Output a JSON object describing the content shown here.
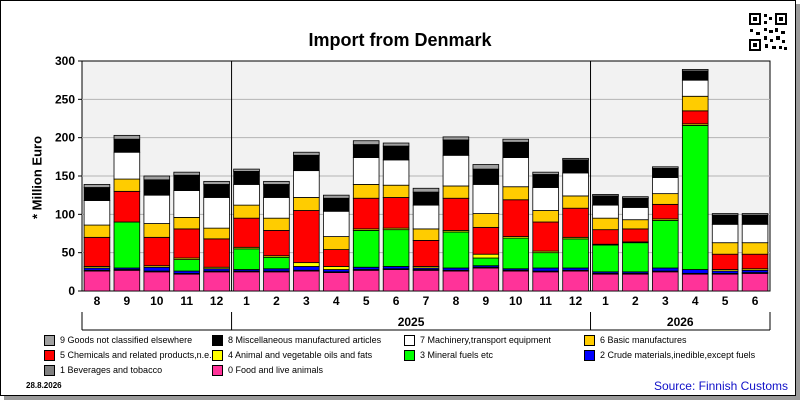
{
  "chart_data": {
    "type": "bar",
    "stacked": true,
    "title": "Import from Denmark",
    "ylabel": "* Million Euro",
    "ylim": [
      0,
      300
    ],
    "yticks": [
      0,
      50,
      100,
      150,
      200,
      250,
      300
    ],
    "categories": [
      "8",
      "9",
      "10",
      "11",
      "12",
      "1",
      "2",
      "3",
      "4",
      "5",
      "6",
      "7",
      "8",
      "9",
      "10",
      "11",
      "12",
      "1",
      "2",
      "3",
      "4",
      "5",
      "6"
    ],
    "year_labels": [
      {
        "label": "2025",
        "start": 5,
        "end": 16
      },
      {
        "label": "2026",
        "start": 17,
        "end": 22
      }
    ],
    "series": [
      {
        "name": "0 Food and live animals",
        "color": "#ff3399",
        "values": [
          26,
          27,
          25,
          22,
          25,
          25,
          25,
          26,
          24,
          27,
          28,
          27,
          26,
          30,
          26,
          25,
          26,
          22,
          22,
          25,
          22,
          22,
          23
        ]
      },
      {
        "name": "1 Beverages and tobacco",
        "color": "#808080",
        "values": [
          1,
          1,
          1,
          1,
          1,
          1,
          1,
          1,
          1,
          1,
          1,
          1,
          1,
          1,
          1,
          1,
          1,
          1,
          1,
          1,
          1,
          1,
          1
        ]
      },
      {
        "name": "2 Crude materials,inedible,except fuels",
        "color": "#0000ff",
        "values": [
          3,
          2,
          5,
          3,
          3,
          2,
          3,
          5,
          3,
          3,
          3,
          2,
          3,
          2,
          2,
          4,
          3,
          2,
          2,
          4,
          5,
          3,
          3
        ]
      },
      {
        "name": "3 Mineral fuels etc",
        "color": "#00ff00",
        "values": [
          0,
          60,
          0,
          15,
          0,
          27,
          15,
          0,
          0,
          48,
          48,
          0,
          47,
          10,
          40,
          20,
          38,
          35,
          38,
          62,
          188,
          0,
          0
        ]
      },
      {
        "name": "4 Animal and vegetable oils and fats",
        "color": "#ffff00",
        "values": [
          2,
          0,
          2,
          2,
          2,
          2,
          2,
          5,
          4,
          2,
          2,
          2,
          2,
          5,
          2,
          2,
          2,
          1,
          1,
          2,
          2,
          2,
          2
        ]
      },
      {
        "name": "5 Chemicals and related products,n.e.s.",
        "color": "#ff0000",
        "values": [
          38,
          40,
          37,
          38,
          37,
          38,
          33,
          68,
          22,
          40,
          40,
          34,
          42,
          35,
          48,
          38,
          38,
          19,
          17,
          19,
          17,
          20,
          19
        ]
      },
      {
        "name": "6 Basic manufactures",
        "color": "#ffcc00",
        "values": [
          16,
          16,
          18,
          15,
          14,
          17,
          16,
          17,
          17,
          18,
          16,
          15,
          16,
          18,
          17,
          15,
          16,
          15,
          12,
          14,
          19,
          15,
          15
        ]
      },
      {
        "name": "7 Machinery,transport equipment",
        "color": "#ffffff",
        "values": [
          32,
          35,
          37,
          35,
          40,
          27,
          27,
          35,
          33,
          35,
          33,
          31,
          40,
          38,
          38,
          30,
          30,
          17,
          16,
          21,
          21,
          24,
          24
        ]
      },
      {
        "name": "8 Miscellaneous manufactured articles",
        "color": "#000000",
        "values": [
          17,
          17,
          20,
          20,
          17,
          17,
          17,
          20,
          17,
          17,
          18,
          17,
          20,
          20,
          20,
          17,
          17,
          12,
          12,
          12,
          12,
          12,
          12
        ]
      },
      {
        "name": "9 Goods not classified elsewhere",
        "color": "#a0a0a0",
        "values": [
          4,
          5,
          5,
          4,
          4,
          3,
          4,
          4,
          4,
          5,
          4,
          5,
          4,
          6,
          4,
          3,
          2,
          2,
          2,
          2,
          2,
          2,
          2
        ]
      }
    ]
  },
  "legend": [
    {
      "label": "9 Goods not classified elsewhere",
      "color": "#a0a0a0"
    },
    {
      "label": "8 Miscellaneous manufactured articles",
      "color": "#000000"
    },
    {
      "label": "7 Machinery,transport equipment",
      "color": "#ffffff"
    },
    {
      "label": "6 Basic manufactures",
      "color": "#ffcc00"
    },
    {
      "label": "5 Chemicals and related products,n.e.s.",
      "color": "#ff0000"
    },
    {
      "label": "4 Animal and vegetable oils and fats",
      "color": "#ffff00"
    },
    {
      "label": "3 Mineral fuels etc",
      "color": "#00ff00"
    },
    {
      "label": "2 Crude materials,inedible,except fuels",
      "color": "#0000ff"
    },
    {
      "label": "1 Beverages and tobacco",
      "color": "#808080"
    },
    {
      "label": "0 Food and live animals",
      "color": "#ff3399"
    }
  ],
  "date_stamp": "28.8.2026",
  "source": "Source: Finnish Customs"
}
